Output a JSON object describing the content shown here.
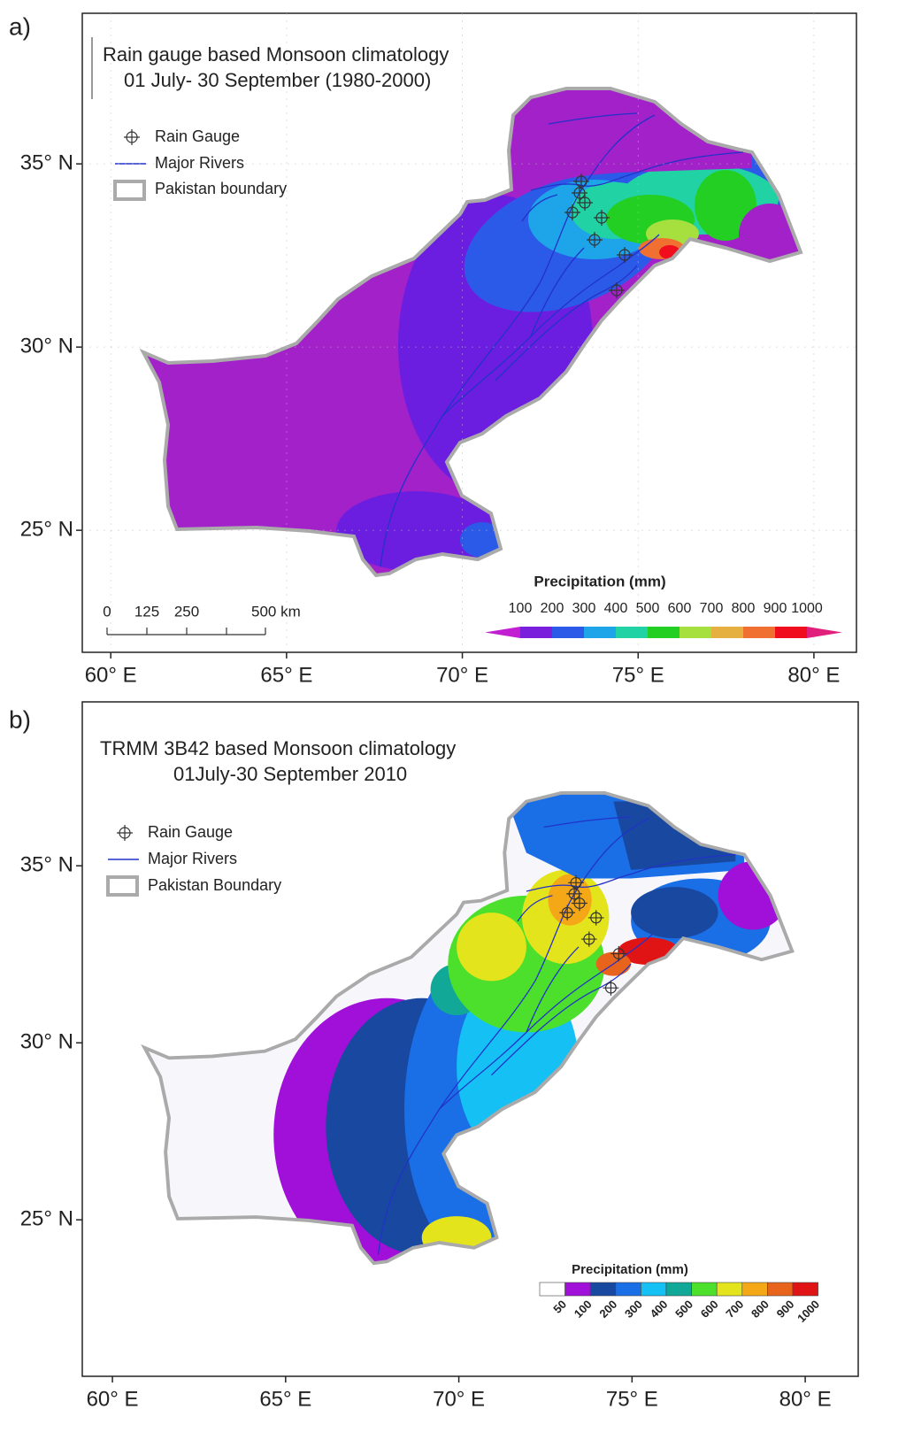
{
  "panels": [
    {
      "label": "a)",
      "title": [
        "Rain gauge based Monsoon climatology",
        "01 July- 30 September (1980-2000)"
      ],
      "legend": [
        "Rain Gauge",
        "Major Rivers",
        "Pakistan boundary"
      ],
      "xlim": [
        59.19,
        81.21
      ],
      "xticks": [
        {
          "value": 60,
          "label": "60° E"
        },
        {
          "value": 65,
          "label": "65° E"
        },
        {
          "value": 70,
          "label": "70° E"
        },
        {
          "value": 75,
          "label": "75° E"
        },
        {
          "value": 80,
          "label": "80° E"
        }
      ],
      "ylim": [
        21.67,
        39.11
      ],
      "yticks": [
        {
          "value": 25,
          "label": "25° N"
        },
        {
          "value": 30,
          "label": "30° N"
        },
        {
          "value": 35,
          "label": "35° N"
        }
      ],
      "scalebar": [
        "0",
        "125",
        "250",
        "500 km"
      ],
      "colorbar": {
        "title": "Precipitation (mm)",
        "labels": [
          100,
          200,
          300,
          400,
          500,
          600,
          700,
          800,
          900,
          1000
        ],
        "colors": [
          "#c21ed2",
          "#7a1fdc",
          "#2c5ae8",
          "#1ea4e8",
          "#20d2a4",
          "#24cf24",
          "#a6e03e",
          "#e6b040",
          "#f07032",
          "#f00e1e",
          "#e0207c"
        ]
      }
    },
    {
      "label": "b)",
      "title": [
        "TRMM 3B42  based Monsoon climatology",
        "01July-30 September 2010"
      ],
      "legend": [
        "Rain Gauge",
        "Major Rivers",
        "Pakistan Boundary"
      ],
      "xlim": [
        59.13,
        81.53
      ],
      "xticks": [
        {
          "value": 60,
          "label": "60° E"
        },
        {
          "value": 65,
          "label": "65° E"
        },
        {
          "value": 70,
          "label": "70° E"
        },
        {
          "value": 75,
          "label": "75° E"
        },
        {
          "value": 80,
          "label": "80° E"
        }
      ],
      "ylim": [
        20.58,
        39.63
      ],
      "yticks": [
        {
          "value": 25,
          "label": "25° N"
        },
        {
          "value": 30,
          "label": "30° N"
        },
        {
          "value": 35,
          "label": "35° N"
        }
      ],
      "colorbar": {
        "title": "Precipitation (mm)",
        "labels": [
          50,
          100,
          200,
          300,
          400,
          500,
          600,
          700,
          800,
          900,
          1000
        ],
        "colors": [
          "#ffffff",
          "#a010d8",
          "#1848a0",
          "#1a6ee6",
          "#14c0f4",
          "#12a898",
          "#4ce02c",
          "#e4e41c",
          "#f4a818",
          "#e8641c",
          "#e01414"
        ]
      }
    }
  ]
}
